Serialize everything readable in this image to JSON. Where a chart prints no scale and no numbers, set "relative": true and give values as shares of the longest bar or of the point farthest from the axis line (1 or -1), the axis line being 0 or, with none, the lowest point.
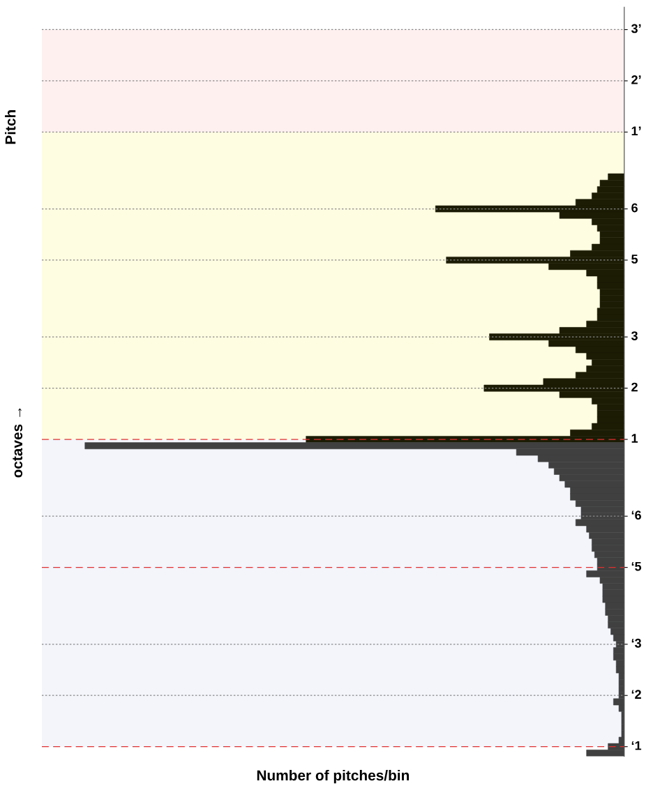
{
  "chart_data": {
    "type": "bar",
    "orientation": "horizontal",
    "relative": true,
    "tick_labels": "y",
    "ylabel": "Pitch",
    "xlabel": "Number of pitches/bin",
    "annotations": [
      "octaves →"
    ],
    "categories": [
      null,
      null,
      null,
      "3’",
      null,
      null,
      null,
      null,
      null,
      null,
      null,
      "2’",
      null,
      null,
      null,
      null,
      null,
      null,
      null,
      "1’",
      null,
      null,
      null,
      null,
      null,
      null,
      null,
      null,
      null,
      null,
      null,
      "6",
      null,
      null,
      null,
      null,
      null,
      null,
      null,
      "5",
      null,
      null,
      null,
      null,
      null,
      null,
      null,
      null,
      null,
      null,
      null,
      "3",
      null,
      null,
      null,
      null,
      null,
      null,
      null,
      "2",
      null,
      null,
      null,
      null,
      null,
      null,
      null,
      "1",
      null,
      null,
      null,
      null,
      null,
      null,
      null,
      null,
      null,
      null,
      null,
      "‘6",
      null,
      null,
      null,
      null,
      null,
      null,
      null,
      "‘5",
      null,
      null,
      null,
      null,
      null,
      null,
      null,
      null,
      null,
      null,
      null,
      "‘3",
      null,
      null,
      null,
      null,
      null,
      null,
      null,
      "‘2",
      null,
      null,
      null,
      null,
      null,
      null,
      null,
      "‘1",
      null
    ],
    "values": [
      null,
      null,
      null,
      null,
      null,
      null,
      null,
      null,
      null,
      null,
      null,
      null,
      null,
      null,
      null,
      null,
      null,
      null,
      null,
      null,
      null,
      null,
      null,
      null,
      null,
      null,
      0.03,
      0.045,
      0.05,
      0.06,
      0.09,
      0.35,
      0.12,
      0.06,
      0.05,
      0.045,
      0.045,
      0.06,
      0.1,
      0.33,
      0.14,
      0.07,
      0.05,
      0.05,
      0.045,
      0.045,
      0.045,
      0.05,
      0.05,
      0.07,
      0.12,
      0.25,
      0.14,
      0.09,
      0.07,
      0.06,
      0.07,
      0.09,
      0.15,
      0.26,
      0.12,
      0.06,
      0.05,
      0.05,
      0.05,
      0.06,
      0.1,
      0.59,
      1.0,
      0.2,
      0.16,
      0.14,
      0.13,
      0.12,
      0.11,
      0.1,
      0.1,
      0.09,
      0.08,
      0.08,
      0.09,
      0.07,
      0.065,
      0.06,
      0.06,
      0.055,
      0.05,
      0.05,
      0.07,
      0.045,
      0.04,
      0.04,
      0.04,
      0.035,
      0.035,
      0.03,
      0.03,
      0.025,
      0.02,
      0.015,
      0.02,
      0.02,
      0.015,
      0.015,
      0.01,
      0.01,
      0.01,
      0.01,
      0.02,
      0.01,
      0.005,
      0.005,
      0.005,
      0.005,
      0.01,
      0.03,
      0.07
    ],
    "colors": [
      null,
      null,
      null,
      null,
      null,
      null,
      null,
      null,
      null,
      null,
      null,
      null,
      null,
      null,
      null,
      null,
      null,
      null,
      null,
      null,
      null,
      null,
      null,
      null,
      null,
      null,
      "#1c1c05",
      "#1c1c05",
      "#1c1c05",
      "#1c1c05",
      "#1c1c05",
      "#1c1c05",
      "#1c1c05",
      "#1c1c05",
      "#1c1c05",
      "#1c1c05",
      "#1c1c05",
      "#1c1c05",
      "#1c1c05",
      "#1c1c05",
      "#1c1c05",
      "#1c1c05",
      "#1c1c05",
      "#1c1c05",
      "#1c1c05",
      "#1c1c05",
      "#1c1c05",
      "#1c1c05",
      "#1c1c05",
      "#1c1c05",
      "#1c1c05",
      "#1c1c05",
      "#1c1c05",
      "#1c1c05",
      "#1c1c05",
      "#1c1c05",
      "#1c1c05",
      "#1c1c05",
      "#1c1c05",
      "#1c1c05",
      "#1c1c05",
      "#1c1c05",
      "#1c1c05",
      "#1c1c05",
      "#1c1c05",
      "#1c1c05",
      "#1c1c05",
      "#1c1c05",
      "#404040",
      "#404040",
      "#404040",
      "#404040",
      "#404040",
      "#404040",
      "#404040",
      "#404040",
      "#404040",
      "#404040",
      "#404040",
      "#404040",
      "#404040",
      "#404040",
      "#404040",
      "#404040",
      "#404040",
      "#404040",
      "#404040",
      "#404040",
      "#404040",
      "#404040",
      "#404040",
      "#404040",
      "#404040",
      "#404040",
      "#404040",
      "#404040",
      "#404040",
      "#404040",
      "#404040",
      "#404040",
      "#404040",
      "#404040",
      "#404040",
      "#404040",
      "#404040",
      "#404040",
      "#404040",
      "#404040",
      "#404040",
      "#404040",
      "#404040",
      "#404040",
      "#404040",
      "#404040",
      "#404040",
      "#404040",
      "#404040"
    ],
    "bands": [
      {
        "axis": "y",
        "from": "‘1",
        "to": "1",
        "color": "#f3f5fb"
      },
      {
        "axis": "y",
        "from": "1",
        "to": "1’",
        "color": "#fffde1"
      },
      {
        "axis": "y",
        "from": "1’",
        "to": "3’",
        "color": "#fff0f0"
      }
    ],
    "ref_lines": [
      {
        "axis": "y",
        "value": "‘1",
        "color": "#e03030",
        "line_style": "dashed"
      },
      {
        "axis": "y",
        "value": "‘2",
        "color": "#888888",
        "line_style": "dotted"
      },
      {
        "axis": "y",
        "value": "‘3",
        "color": "#888888",
        "line_style": "dotted"
      },
      {
        "axis": "y",
        "value": "‘5",
        "color": "#e03030",
        "line_style": "dashed"
      },
      {
        "axis": "y",
        "value": "‘6",
        "color": "#888888",
        "line_style": "dotted"
      },
      {
        "axis": "y",
        "value": "1",
        "color": "#e03030",
        "line_style": "dashed"
      },
      {
        "axis": "y",
        "value": "2",
        "color": "#888888",
        "line_style": "dotted"
      },
      {
        "axis": "y",
        "value": "3",
        "color": "#888888",
        "line_style": "dotted"
      },
      {
        "axis": "y",
        "value": "5",
        "color": "#888888",
        "line_style": "dotted"
      },
      {
        "axis": "y",
        "value": "6",
        "color": "#888888",
        "line_style": "dotted"
      },
      {
        "axis": "y",
        "value": "1’",
        "color": "#888888",
        "line_style": "dotted"
      },
      {
        "axis": "y",
        "value": "2’",
        "color": "#888888",
        "line_style": "dotted"
      },
      {
        "axis": "y",
        "value": "3’",
        "color": "#888888",
        "line_style": "dotted"
      }
    ]
  }
}
